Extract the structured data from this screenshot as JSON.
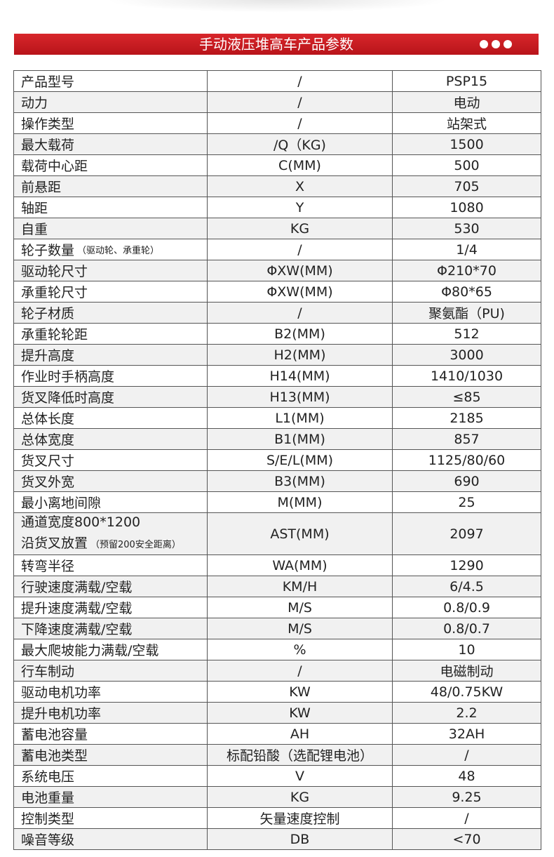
{
  "header": {
    "title": "手动液压堆高车产品参数"
  },
  "table": {
    "rows": [
      {
        "label": [
          "产品型号"
        ],
        "unit": "/",
        "value": "PSP15"
      },
      {
        "label": [
          "动力"
        ],
        "unit": "/",
        "value": "电动"
      },
      {
        "label": [
          "操作类型"
        ],
        "unit": "/",
        "value": "站架式"
      },
      {
        "label": [
          "最大载荷"
        ],
        "unit": "/Q（KG)",
        "value": "1500"
      },
      {
        "label": [
          "载荷中心距"
        ],
        "unit": "C(MM)",
        "value": "500"
      },
      {
        "label": [
          "前悬距"
        ],
        "unit": "X",
        "value": "705"
      },
      {
        "label": [
          "轴距"
        ],
        "unit": "Y",
        "value": "1080"
      },
      {
        "label": [
          "自重"
        ],
        "unit": "KG",
        "value": "530"
      },
      {
        "label": [
          "轮子数量"
        ],
        "note": "（驱动轮、承重轮）",
        "unit": "/",
        "value": "1/4"
      },
      {
        "label": [
          "驱动轮尺寸"
        ],
        "unit": "ΦXW(MM)",
        "value": "Φ210*70"
      },
      {
        "label": [
          "承重轮尺寸"
        ],
        "unit": "ΦXW(MM)",
        "value": "Φ80*65"
      },
      {
        "label": [
          "轮子材质"
        ],
        "unit": "/",
        "value": "聚氨酯（PU)"
      },
      {
        "label": [
          "承重轮轮距"
        ],
        "unit": "B2(MM)",
        "value": "512"
      },
      {
        "label": [
          "提升高度"
        ],
        "unit": "H2(MM)",
        "value": "3000"
      },
      {
        "label": [
          "作业时手柄高度"
        ],
        "unit": "H14(MM)",
        "value": "1410/1030"
      },
      {
        "label": [
          "货叉降低时高度"
        ],
        "unit": "H13(MM)",
        "value": "≤85"
      },
      {
        "label": [
          "总体长度"
        ],
        "unit": "L1(MM)",
        "value": "2185"
      },
      {
        "label": [
          "总体宽度"
        ],
        "unit": "B1(MM)",
        "value": "857"
      },
      {
        "label": [
          "货叉尺寸"
        ],
        "unit": "S/E/L(MM)",
        "value": "1125/80/60"
      },
      {
        "label": [
          "货叉外宽"
        ],
        "unit": "B3(MM)",
        "value": "690"
      },
      {
        "label": [
          "最小离地间隙"
        ],
        "unit": "M(MM)",
        "value": "25"
      },
      {
        "label": [
          "通道宽度800*1200",
          "沿货叉放置"
        ],
        "note": "（预留200安全距离）",
        "unit": "AST(MM)",
        "value": "2097"
      },
      {
        "label": [
          "转弯半径"
        ],
        "unit": "WA(MM)",
        "value": "1290"
      },
      {
        "label": [
          "行驶速度满载/空载"
        ],
        "unit": "KM/H",
        "value": "6/4.5"
      },
      {
        "label": [
          "提升速度满载/空载"
        ],
        "unit": "M/S",
        "value": "0.8/0.9"
      },
      {
        "label": [
          "下降速度满载/空载"
        ],
        "unit": "M/S",
        "value": "0.8/0.7"
      },
      {
        "label": [
          "最大爬坡能力满载/空载"
        ],
        "unit": "%",
        "value": "10"
      },
      {
        "label": [
          "行车制动"
        ],
        "unit": "/",
        "value": "电磁制动"
      },
      {
        "label": [
          "驱动电机功率"
        ],
        "unit": "KW",
        "value": "48/0.75KW"
      },
      {
        "label": [
          "提升电机功率"
        ],
        "unit": "KW",
        "value": "2.2"
      },
      {
        "label": [
          "蓄电池容量"
        ],
        "unit": "AH",
        "value": "32AH"
      },
      {
        "label": [
          "蓄电池类型"
        ],
        "unit": "标配铅酸（选配锂电池）",
        "value": "/"
      },
      {
        "label": [
          "系统电压"
        ],
        "unit": "V",
        "value": "48"
      },
      {
        "label": [
          "电池重量"
        ],
        "unit": "KG",
        "value": "9.25"
      },
      {
        "label": [
          "控制类型"
        ],
        "unit": "矢量速度控制",
        "value": "/"
      },
      {
        "label": [
          "噪音等级"
        ],
        "unit": "DB",
        "value": "<70"
      }
    ]
  }
}
